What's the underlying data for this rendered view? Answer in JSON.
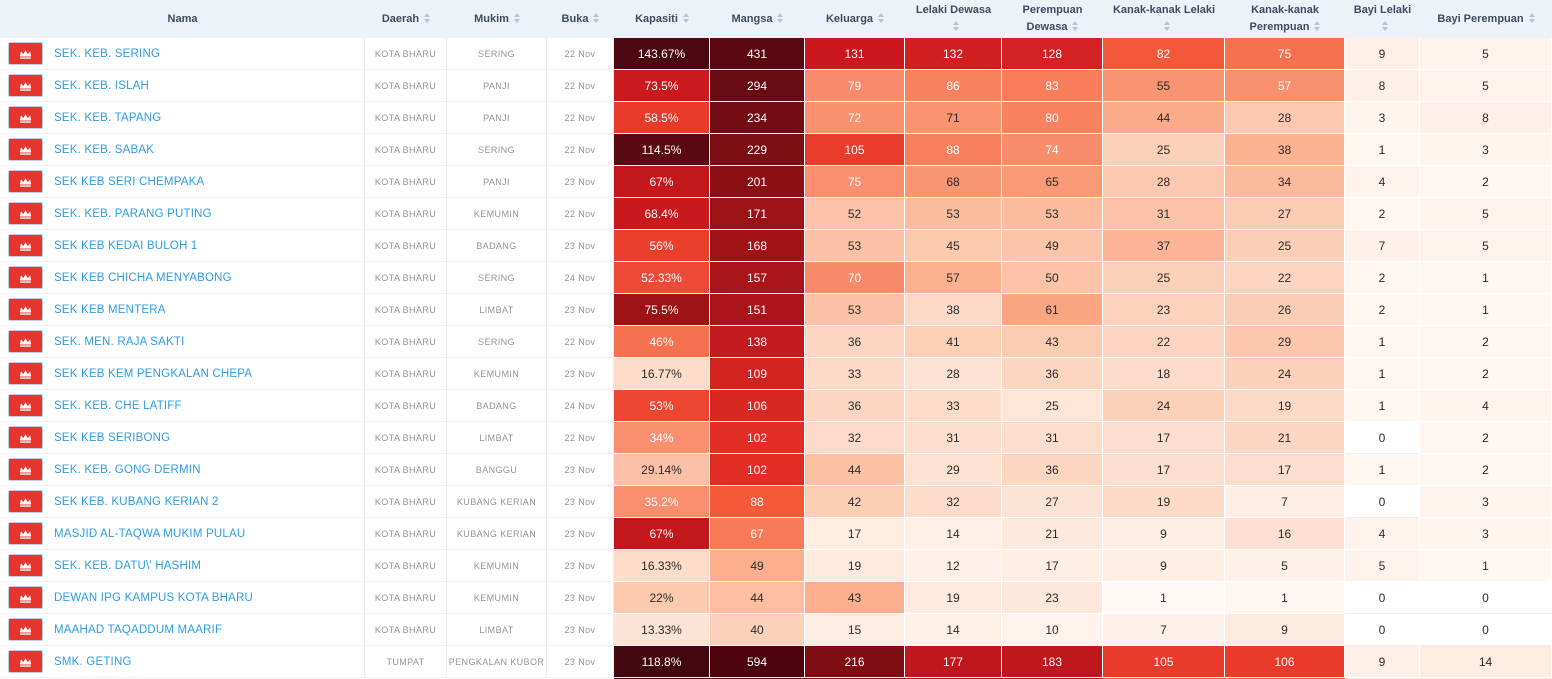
{
  "table": {
    "columns": [
      {
        "key": "nama",
        "label": "Nama",
        "sortable": false
      },
      {
        "key": "daerah",
        "label": "Daerah",
        "sortable": true
      },
      {
        "key": "mukim",
        "label": "Mukim",
        "sortable": true
      },
      {
        "key": "buka",
        "label": "Buka",
        "sortable": true
      },
      {
        "key": "kapasiti",
        "label": "Kapasiti",
        "sortable": true
      },
      {
        "key": "mangsa",
        "label": "Mangsa",
        "sortable": true
      },
      {
        "key": "keluarga",
        "label": "Keluarga",
        "sortable": true
      },
      {
        "key": "lelaki_dewasa",
        "label": "Lelaki Dewasa",
        "sortable": true
      },
      {
        "key": "perempuan_dewasa",
        "label": "Perempuan Dewasa",
        "sortable": true
      },
      {
        "key": "kanak_kanak_lelaki",
        "label": "Kanak-kanak Lelaki",
        "sortable": true
      },
      {
        "key": "kanak_kanak_perempuan",
        "label": "Kanak-kanak Perempuan",
        "sortable": true
      },
      {
        "key": "bayi_lelaki",
        "label": "Bayi Lelaki",
        "sortable": true
      },
      {
        "key": "bayi_perempuan",
        "label": "Bayi Perempuan",
        "sortable": true
      }
    ],
    "colors": {
      "header_bg": "#edf1f8",
      "header_text": "#3e4b63",
      "link_blue": "#2e9de4",
      "marker_red": "#e7342c",
      "muted_text": "#8e949e"
    },
    "rows": [
      {
        "nama": "SEK. KEB. SERING",
        "daerah": "KOTA BHARU",
        "mukim": "SERING",
        "buka": "22 Nov",
        "heat": [
          {
            "v": "143.67%",
            "bg": "#4d0912"
          },
          {
            "v": "431",
            "bg": "#5c0811"
          },
          {
            "v": "131",
            "bg": "#cb181d"
          },
          {
            "v": "132",
            "bg": "#d21e21"
          },
          {
            "v": "128",
            "bg": "#d62124"
          },
          {
            "v": "82",
            "bg": "#f4583a"
          },
          {
            "v": "75",
            "bg": "#f6714d"
          },
          {
            "v": "9",
            "bg": "#fef0e7"
          },
          {
            "v": "5",
            "bg": "#fef3ec"
          }
        ]
      },
      {
        "nama": "SEK. KEB. ISLAH",
        "daerah": "KOTA BHARU",
        "mukim": "PANJI",
        "buka": "22 Nov",
        "heat": [
          {
            "v": "73.5%",
            "bg": "#cb1a1e"
          },
          {
            "v": "294",
            "bg": "#680b12"
          },
          {
            "v": "79",
            "bg": "#f98b6c"
          },
          {
            "v": "86",
            "bg": "#f8815f"
          },
          {
            "v": "83",
            "bg": "#f87e5b"
          },
          {
            "v": "55",
            "bg": "#f99472"
          },
          {
            "v": "57",
            "bg": "#f9906d"
          },
          {
            "v": "8",
            "bg": "#fef0e8"
          },
          {
            "v": "5",
            "bg": "#fef3ec"
          }
        ]
      },
      {
        "nama": "SEK. KEB. TAPANG",
        "daerah": "KOTA BHARU",
        "mukim": "PANJI",
        "buka": "22 Nov",
        "heat": [
          {
            "v": "58.5%",
            "bg": "#e93a2b"
          },
          {
            "v": "234",
            "bg": "#740d13"
          },
          {
            "v": "72",
            "bg": "#f9906e"
          },
          {
            "v": "71",
            "bg": "#f99370"
          },
          {
            "v": "80",
            "bg": "#f8825f"
          },
          {
            "v": "44",
            "bg": "#fbab89"
          },
          {
            "v": "28",
            "bg": "#fcc9b0"
          },
          {
            "v": "3",
            "bg": "#fef5ef"
          },
          {
            "v": "8",
            "bg": "#fef0e8"
          }
        ]
      },
      {
        "nama": "SEK. KEB. SABAK",
        "daerah": "KOTA BHARU",
        "mukim": "SERING",
        "buka": "22 Nov",
        "heat": [
          {
            "v": "114.5%",
            "bg": "#5a0911"
          },
          {
            "v": "229",
            "bg": "#7c0e13"
          },
          {
            "v": "105",
            "bg": "#ea3c2b"
          },
          {
            "v": "88",
            "bg": "#f87f5d"
          },
          {
            "v": "74",
            "bg": "#f98d6b"
          },
          {
            "v": "25",
            "bg": "#fccfb8"
          },
          {
            "v": "38",
            "bg": "#fbb392"
          },
          {
            "v": "1",
            "bg": "#fff7f2"
          },
          {
            "v": "3",
            "bg": "#fef5ef"
          }
        ]
      },
      {
        "nama": "SEK KEB SERI CHEMPAKA",
        "daerah": "KOTA BHARU",
        "mukim": "PANJI",
        "buka": "23 Nov",
        "heat": [
          {
            "v": "67%",
            "bg": "#c3171c"
          },
          {
            "v": "201",
            "bg": "#8b0f14"
          },
          {
            "v": "75",
            "bg": "#f98f6e"
          },
          {
            "v": "68",
            "bg": "#f99672"
          },
          {
            "v": "65",
            "bg": "#f99a77"
          },
          {
            "v": "28",
            "bg": "#fcc9b0"
          },
          {
            "v": "34",
            "bg": "#fbba9b"
          },
          {
            "v": "4",
            "bg": "#fef4ed"
          },
          {
            "v": "2",
            "bg": "#fef6f0"
          }
        ]
      },
      {
        "nama": "SEK. KEB. PARANG PUTING",
        "daerah": "KOTA BHARU",
        "mukim": "KEMUMIN",
        "buka": "22 Nov",
        "heat": [
          {
            "v": "68.4%",
            "bg": "#c9191d"
          },
          {
            "v": "171",
            "bg": "#9d1217"
          },
          {
            "v": "52",
            "bg": "#fcc2a7"
          },
          {
            "v": "53",
            "bg": "#fcbd9e"
          },
          {
            "v": "53",
            "bg": "#fbbd9e"
          },
          {
            "v": "31",
            "bg": "#fcc2a6"
          },
          {
            "v": "27",
            "bg": "#fccbb3"
          },
          {
            "v": "2",
            "bg": "#fef6f0"
          },
          {
            "v": "5",
            "bg": "#fef3ec"
          }
        ]
      },
      {
        "nama": "SEK KEB KEDAI BULOH 1",
        "daerah": "KOTA BHARU",
        "mukim": "BADANG",
        "buka": "23 Nov",
        "heat": [
          {
            "v": "56%",
            "bg": "#eb3f2d"
          },
          {
            "v": "168",
            "bg": "#a21318"
          },
          {
            "v": "53",
            "bg": "#fcc0a4"
          },
          {
            "v": "45",
            "bg": "#fcc9ad"
          },
          {
            "v": "49",
            "bg": "#fcc4a9"
          },
          {
            "v": "37",
            "bg": "#fbb596"
          },
          {
            "v": "25",
            "bg": "#fcceb7"
          },
          {
            "v": "7",
            "bg": "#fef1e9"
          },
          {
            "v": "5",
            "bg": "#fef3ec"
          }
        ]
      },
      {
        "nama": "SEK KEB CHICHA MENYABONG",
        "daerah": "KOTA BHARU",
        "mukim": "SERING",
        "buka": "24 Nov",
        "heat": [
          {
            "v": "52.33%",
            "bg": "#ef4937"
          },
          {
            "v": "157",
            "bg": "#a81419"
          },
          {
            "v": "70",
            "bg": "#f98a69"
          },
          {
            "v": "57",
            "bg": "#fbb18e"
          },
          {
            "v": "50",
            "bg": "#fcc3a7"
          },
          {
            "v": "25",
            "bg": "#fccfb8"
          },
          {
            "v": "22",
            "bg": "#fdd4c0"
          },
          {
            "v": "2",
            "bg": "#fef6f0"
          },
          {
            "v": "1",
            "bg": "#fff7f2"
          }
        ]
      },
      {
        "nama": "SEK KEB MENTERA",
        "daerah": "KOTA BHARU",
        "mukim": "LIMBAT",
        "buka": "23 Nov",
        "heat": [
          {
            "v": "75.5%",
            "bg": "#9e1115"
          },
          {
            "v": "151",
            "bg": "#ab1419"
          },
          {
            "v": "53",
            "bg": "#fcc0a4"
          },
          {
            "v": "38",
            "bg": "#fdd9c7"
          },
          {
            "v": "61",
            "bg": "#f9a582"
          },
          {
            "v": "23",
            "bg": "#fdd2bd"
          },
          {
            "v": "26",
            "bg": "#fccdb6"
          },
          {
            "v": "2",
            "bg": "#fef6f0"
          },
          {
            "v": "1",
            "bg": "#fff7f2"
          }
        ]
      },
      {
        "nama": "SEK. MEN. RAJA SAKTI",
        "daerah": "KOTA BHARU",
        "mukim": "SERING",
        "buka": "22 Nov",
        "heat": [
          {
            "v": "46%",
            "bg": "#f5714f"
          },
          {
            "v": "138",
            "bg": "#c21a1e"
          },
          {
            "v": "36",
            "bg": "#fdd6c2"
          },
          {
            "v": "41",
            "bg": "#fccfb6"
          },
          {
            "v": "43",
            "bg": "#fcccb2"
          },
          {
            "v": "22",
            "bg": "#fdd4c0"
          },
          {
            "v": "29",
            "bg": "#fcc7ad"
          },
          {
            "v": "1",
            "bg": "#fff7f2"
          },
          {
            "v": "2",
            "bg": "#fef6f0"
          }
        ]
      },
      {
        "nama": "SEK KEB KEM PENGKALAN CHEPA",
        "daerah": "KOTA BHARU",
        "mukim": "KEMUMIN",
        "buka": "23 Nov",
        "heat": [
          {
            "v": "16.77%",
            "bg": "#fddcc9"
          },
          {
            "v": "109",
            "bg": "#d32321"
          },
          {
            "v": "33",
            "bg": "#fdd9c8"
          },
          {
            "v": "28",
            "bg": "#fde2d3"
          },
          {
            "v": "36",
            "bg": "#fdd6c2"
          },
          {
            "v": "18",
            "bg": "#fddbca"
          },
          {
            "v": "24",
            "bg": "#fdd0ba"
          },
          {
            "v": "1",
            "bg": "#fff7f2"
          },
          {
            "v": "2",
            "bg": "#fef6f0"
          }
        ]
      },
      {
        "nama": "SEK. KEB. CHE LATIFF",
        "daerah": "KOTA BHARU",
        "mukim": "BADANG",
        "buka": "24 Nov",
        "heat": [
          {
            "v": "53%",
            "bg": "#ee4531"
          },
          {
            "v": "106",
            "bg": "#d92823"
          },
          {
            "v": "36",
            "bg": "#fdd6c2"
          },
          {
            "v": "33",
            "bg": "#fddcca"
          },
          {
            "v": "25",
            "bg": "#fee5d8"
          },
          {
            "v": "24",
            "bg": "#fdd0ba"
          },
          {
            "v": "19",
            "bg": "#fdd9c8"
          },
          {
            "v": "1",
            "bg": "#fff7f2"
          },
          {
            "v": "4",
            "bg": "#fef4ed"
          }
        ]
      },
      {
        "nama": "SEK KEB SERIBONG",
        "daerah": "KOTA BHARU",
        "mukim": "LIMBAT",
        "buka": "22 Nov",
        "heat": [
          {
            "v": "34%",
            "bg": "#f98f6f"
          },
          {
            "v": "102",
            "bg": "#e12d26"
          },
          {
            "v": "32",
            "bg": "#fddac9"
          },
          {
            "v": "31",
            "bg": "#fddecd"
          },
          {
            "v": "31",
            "bg": "#fddecd"
          },
          {
            "v": "17",
            "bg": "#fdddcd"
          },
          {
            "v": "21",
            "bg": "#fdd6c3"
          },
          {
            "v": "0",
            "bg": "#ffffff"
          },
          {
            "v": "2",
            "bg": "#fef6f0"
          }
        ]
      },
      {
        "nama": "SEK. KEB. GONG DERMIN",
        "daerah": "KOTA BHARU",
        "mukim": "BANGGU",
        "buka": "23 Nov",
        "heat": [
          {
            "v": "29.14%",
            "bg": "#fcc0a6"
          },
          {
            "v": "102",
            "bg": "#e12d26"
          },
          {
            "v": "44",
            "bg": "#fcc0a3"
          },
          {
            "v": "29",
            "bg": "#fde1d1"
          },
          {
            "v": "36",
            "bg": "#fdd6c2"
          },
          {
            "v": "17",
            "bg": "#fdddcd"
          },
          {
            "v": "17",
            "bg": "#fdddcf"
          },
          {
            "v": "1",
            "bg": "#fff7f2"
          },
          {
            "v": "2",
            "bg": "#fef6f0"
          }
        ]
      },
      {
        "nama": "SEK KEB. KUBANG KERIAN 2",
        "daerah": "KOTA BHARU",
        "mukim": "KUBANG KERIAN",
        "buka": "23 Nov",
        "heat": [
          {
            "v": "35.2%",
            "bg": "#f98e6e"
          },
          {
            "v": "88",
            "bg": "#f4593a"
          },
          {
            "v": "42",
            "bg": "#fcceb5"
          },
          {
            "v": "32",
            "bg": "#fddccb"
          },
          {
            "v": "27",
            "bg": "#fde3d5"
          },
          {
            "v": "19",
            "bg": "#fdd9c8"
          },
          {
            "v": "7",
            "bg": "#feeee5"
          },
          {
            "v": "0",
            "bg": "#ffffff"
          },
          {
            "v": "3",
            "bg": "#fef5ef"
          }
        ]
      },
      {
        "nama": "MASJID AL-TAQWA MUKIM PULAU",
        "daerah": "KOTA BHARU",
        "mukim": "KUBANG KERIAN",
        "buka": "23 Nov",
        "heat": [
          {
            "v": "67%",
            "bg": "#c3171c"
          },
          {
            "v": "67",
            "bg": "#f87b57"
          },
          {
            "v": "17",
            "bg": "#feece0"
          },
          {
            "v": "14",
            "bg": "#fef0e7"
          },
          {
            "v": "21",
            "bg": "#feeadd"
          },
          {
            "v": "9",
            "bg": "#feeee4"
          },
          {
            "v": "16",
            "bg": "#fee0d2"
          },
          {
            "v": "4",
            "bg": "#fef4ed"
          },
          {
            "v": "3",
            "bg": "#fef5ef"
          }
        ]
      },
      {
        "nama": "SEK. KEB. DATU\\' HASHIM",
        "daerah": "KOTA BHARU",
        "mukim": "KEMUMIN",
        "buka": "23 Nov",
        "heat": [
          {
            "v": "16.33%",
            "bg": "#fdddca"
          },
          {
            "v": "49",
            "bg": "#fcae8d"
          },
          {
            "v": "19",
            "bg": "#feeade"
          },
          {
            "v": "12",
            "bg": "#fef1e9"
          },
          {
            "v": "17",
            "bg": "#feeee4"
          },
          {
            "v": "9",
            "bg": "#feeee4"
          },
          {
            "v": "5",
            "bg": "#fef1e9"
          },
          {
            "v": "5",
            "bg": "#fef3ec"
          },
          {
            "v": "1",
            "bg": "#fff7f2"
          }
        ]
      },
      {
        "nama": "DEWAN IPG KAMPUS KOTA BHARU",
        "daerah": "KOTA BHARU",
        "mukim": "KEMUMIN",
        "buka": "23 Nov",
        "heat": [
          {
            "v": "22%",
            "bg": "#fcc9ae"
          },
          {
            "v": "44",
            "bg": "#fcbda1"
          },
          {
            "v": "43",
            "bg": "#fbaf8c"
          },
          {
            "v": "19",
            "bg": "#feeade"
          },
          {
            "v": "23",
            "bg": "#fee8db"
          },
          {
            "v": "1",
            "bg": "#fff8f4"
          },
          {
            "v": "1",
            "bg": "#fff7f3"
          },
          {
            "v": "0",
            "bg": "#ffffff"
          },
          {
            "v": "0",
            "bg": "#ffffff"
          }
        ]
      },
      {
        "nama": "MAAHAD TAQADDUM MAARIF",
        "daerah": "KOTA BHARU",
        "mukim": "LIMBAT",
        "buka": "23 Nov",
        "heat": [
          {
            "v": "13.33%",
            "bg": "#fde3d5"
          },
          {
            "v": "40",
            "bg": "#fdd0bc"
          },
          {
            "v": "15",
            "bg": "#feede3"
          },
          {
            "v": "14",
            "bg": "#fef0e7"
          },
          {
            "v": "10",
            "bg": "#fef3ec"
          },
          {
            "v": "7",
            "bg": "#fef1e9"
          },
          {
            "v": "9",
            "bg": "#feebe0"
          },
          {
            "v": "0",
            "bg": "#ffffff"
          },
          {
            "v": "0",
            "bg": "#ffffff"
          }
        ]
      },
      {
        "nama": "SMK. GETING",
        "daerah": "TUMPAT",
        "mukim": "PENGKALAN KUBOR",
        "buka": "23 Nov",
        "heat": [
          {
            "v": "118.8%",
            "bg": "#430710"
          },
          {
            "v": "594",
            "bg": "#4d040d"
          },
          {
            "v": "216",
            "bg": "#7f0d11"
          },
          {
            "v": "177",
            "bg": "#c0171c"
          },
          {
            "v": "183",
            "bg": "#c0171c"
          },
          {
            "v": "105",
            "bg": "#e93a2b"
          },
          {
            "v": "106",
            "bg": "#e93a2b"
          },
          {
            "v": "9",
            "bg": "#fef0e7"
          },
          {
            "v": "14",
            "bg": "#feece1"
          }
        ]
      }
    ],
    "partial_row_colors": [
      "#4a0911",
      "#6f0e13",
      "#7a0e12",
      "#b01318",
      "#b01318",
      "#f05a3c",
      "#f05a3c",
      "#fdf0e8",
      "#fdf0e8"
    ]
  }
}
